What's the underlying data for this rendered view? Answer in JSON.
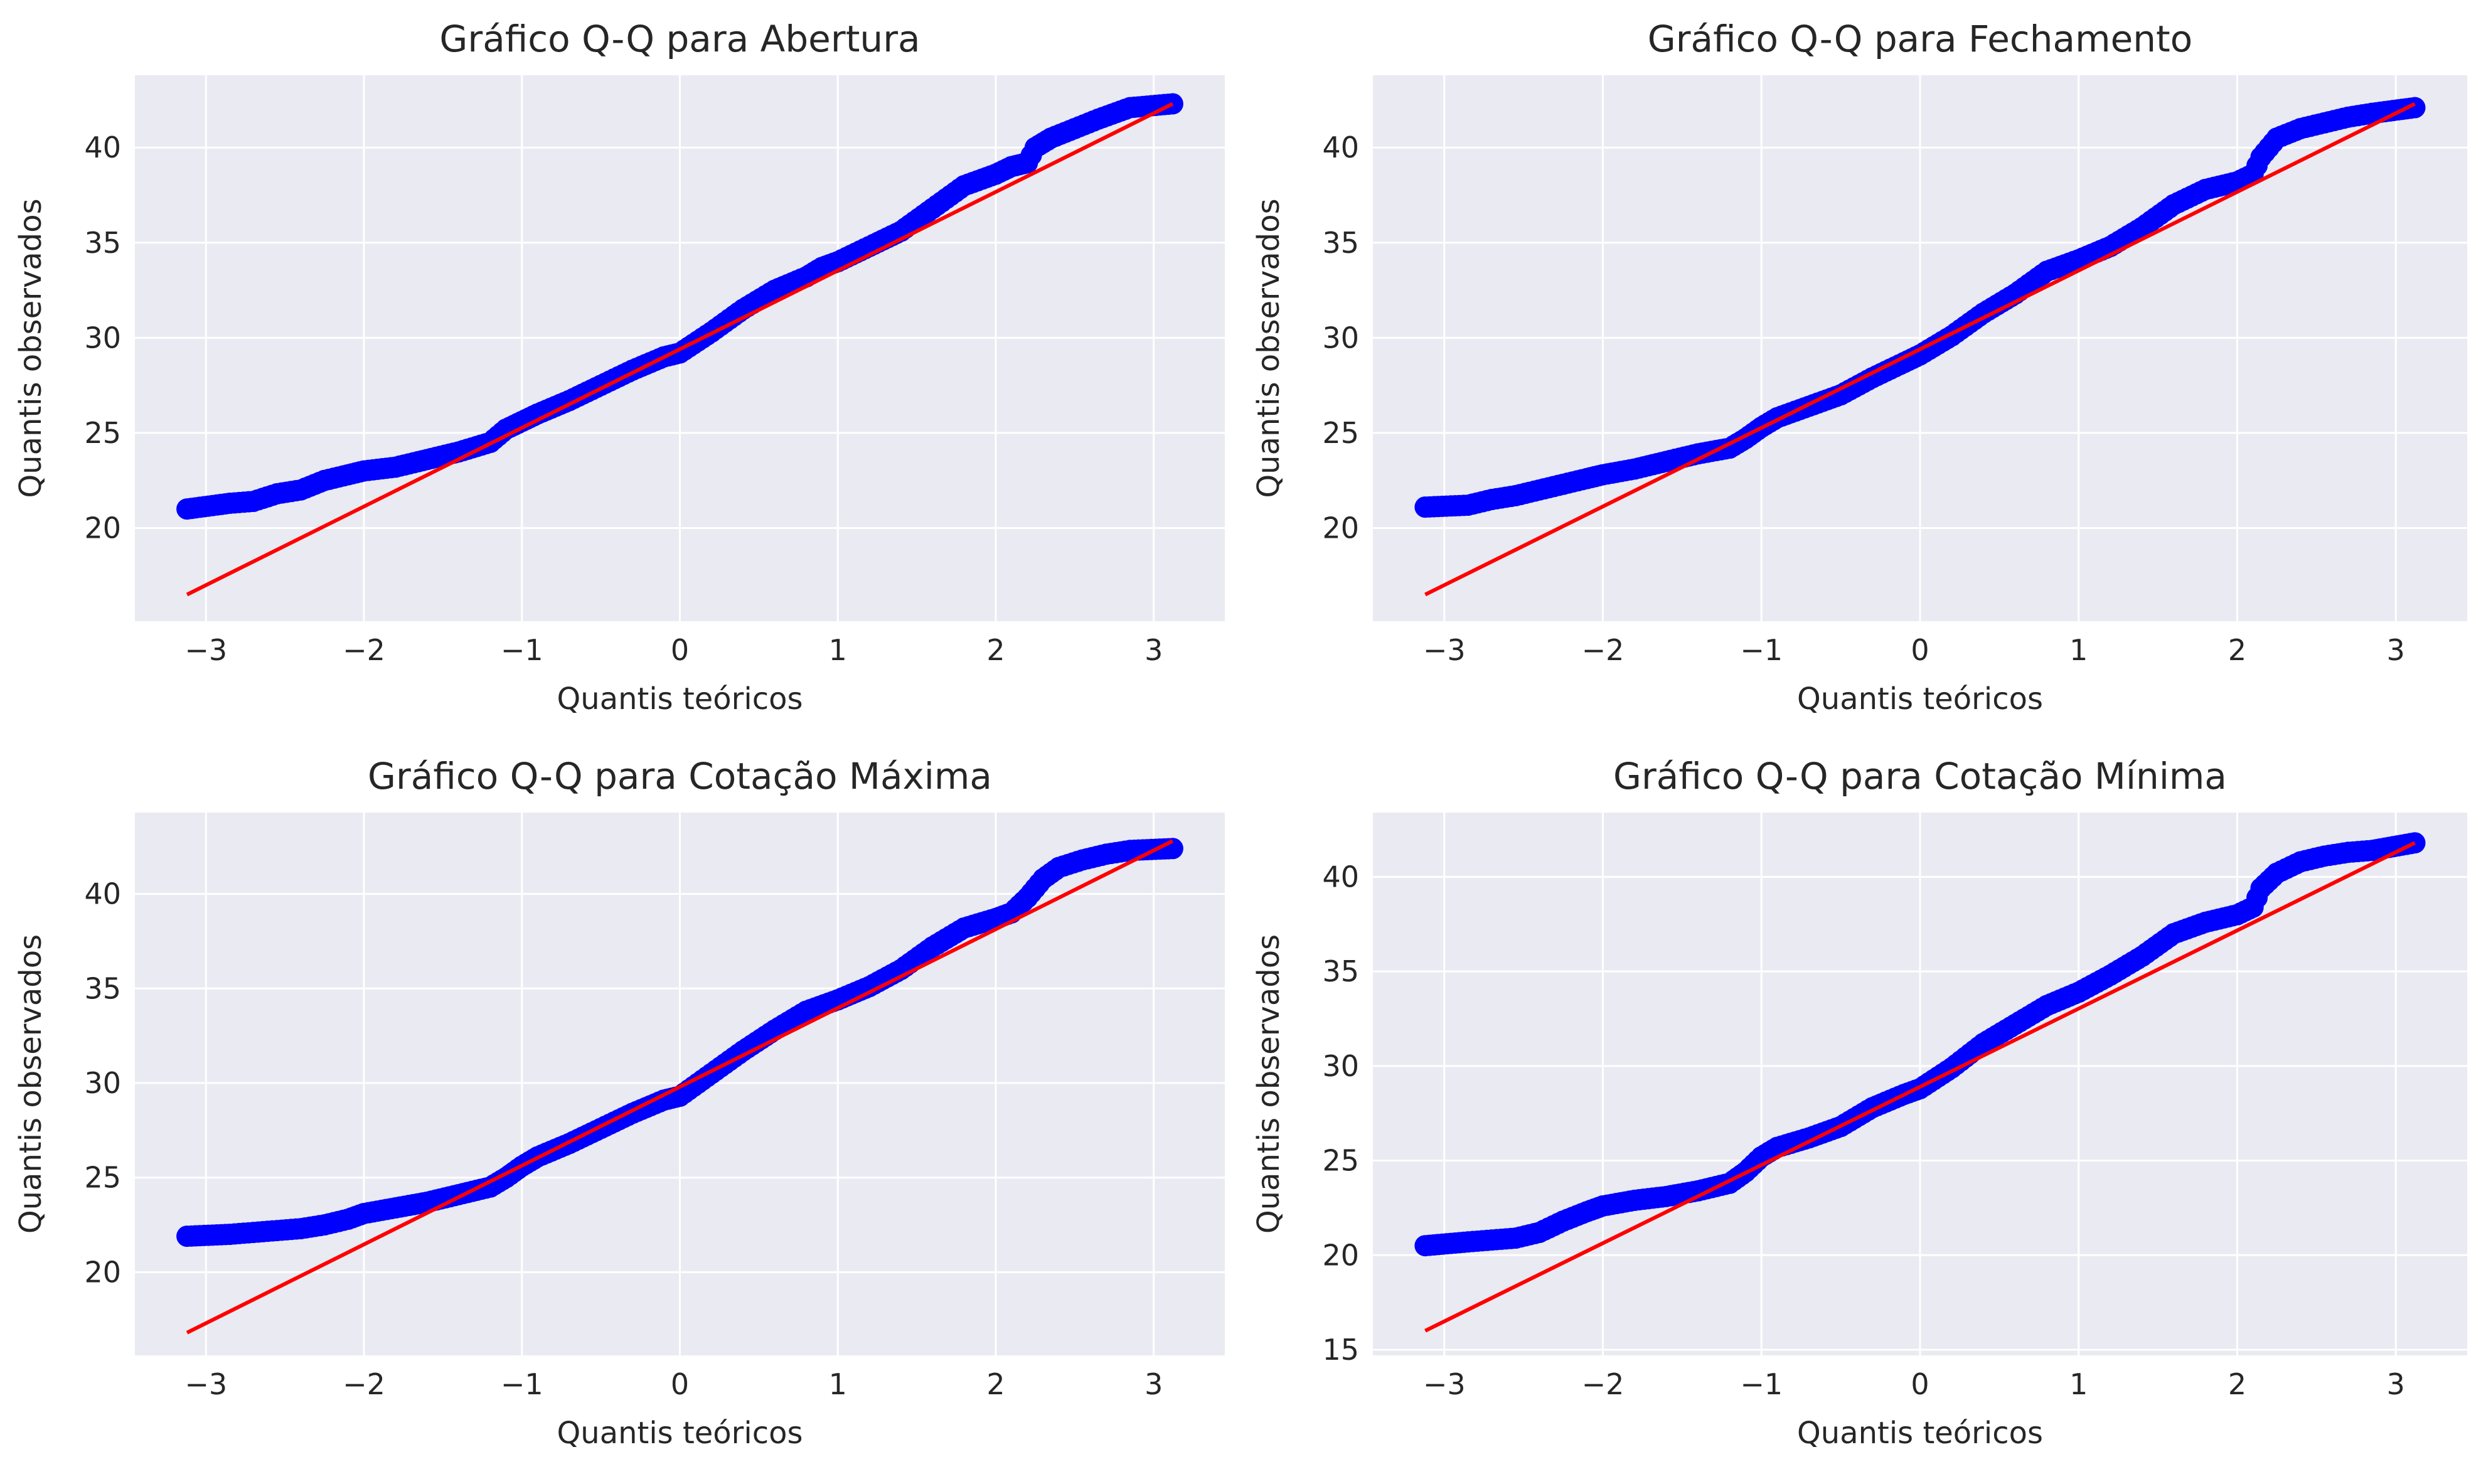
{
  "style": {
    "axes_facecolor": "#eaeaf2",
    "grid_color": "#ffffff",
    "point_color": "#0000ff",
    "line_color": "#ff0000",
    "text_color": "#262626"
  },
  "chart_data": [
    {
      "type": "scatter",
      "title": "Gráfico Q-Q para Abertura",
      "xlabel": "Quantis teóricos",
      "ylabel": "Quantis observados",
      "xlim": [
        -3.45,
        3.45
      ],
      "ylim": [
        15.1,
        43.8
      ],
      "xticks": [
        -3,
        -2,
        -1,
        0,
        1,
        2,
        3
      ],
      "yticks": [
        20,
        25,
        30,
        35,
        40
      ],
      "grid": true,
      "fit_line": {
        "x": [
          -3.12,
          3.12
        ],
        "y": [
          16.5,
          42.3
        ]
      },
      "series": [
        {
          "x": [
            -3.12,
            -2.85,
            -2.7,
            -2.55,
            -2.4,
            -2.25,
            -2.1,
            -2.0,
            -1.8,
            -1.6,
            -1.4,
            -1.2,
            -1.1,
            -1.0,
            -0.9,
            -0.7,
            -0.5,
            -0.3,
            -0.1,
            0.0,
            0.2,
            0.4,
            0.6,
            0.8,
            0.9,
            1.0,
            1.2,
            1.4,
            1.6,
            1.8,
            2.0,
            2.1,
            2.2,
            2.25,
            2.35,
            2.5,
            2.65,
            2.85,
            3.12
          ],
          "y": [
            21.0,
            21.3,
            21.4,
            21.8,
            22.0,
            22.5,
            22.8,
            23.0,
            23.2,
            23.6,
            24.0,
            24.5,
            25.2,
            25.6,
            26.0,
            26.7,
            27.5,
            28.3,
            29.0,
            29.2,
            30.3,
            31.5,
            32.5,
            33.2,
            33.7,
            34.0,
            34.8,
            35.6,
            36.8,
            38.0,
            38.6,
            39.0,
            39.2,
            40.0,
            40.5,
            41.0,
            41.5,
            42.1,
            42.3
          ]
        }
      ]
    },
    {
      "type": "scatter",
      "title": "Gráfico Q-Q para Fechamento",
      "xlabel": "Quantis teóricos",
      "ylabel": "Quantis observados",
      "xlim": [
        -3.45,
        3.45
      ],
      "ylim": [
        15.1,
        43.8
      ],
      "xticks": [
        -3,
        -2,
        -1,
        0,
        1,
        2,
        3
      ],
      "yticks": [
        20,
        25,
        30,
        35,
        40
      ],
      "grid": true,
      "fit_line": {
        "x": [
          -3.12,
          3.12
        ],
        "y": [
          16.5,
          42.3
        ]
      },
      "series": [
        {
          "x": [
            -3.12,
            -2.85,
            -2.7,
            -2.55,
            -2.4,
            -2.25,
            -2.1,
            -2.0,
            -1.8,
            -1.6,
            -1.4,
            -1.2,
            -1.1,
            -1.0,
            -0.9,
            -0.7,
            -0.5,
            -0.3,
            -0.1,
            0.0,
            0.2,
            0.4,
            0.6,
            0.8,
            1.0,
            1.2,
            1.4,
            1.6,
            1.8,
            2.0,
            2.1,
            2.15,
            2.25,
            2.4,
            2.55,
            2.7,
            2.85,
            3.12
          ],
          "y": [
            21.1,
            21.2,
            21.5,
            21.7,
            22.0,
            22.3,
            22.6,
            22.8,
            23.1,
            23.5,
            23.9,
            24.2,
            24.7,
            25.3,
            25.8,
            26.4,
            27.0,
            27.9,
            28.7,
            29.1,
            30.1,
            31.3,
            32.3,
            33.5,
            34.1,
            34.8,
            35.8,
            37.0,
            37.8,
            38.2,
            38.6,
            39.5,
            40.5,
            41.0,
            41.3,
            41.6,
            41.8,
            42.1
          ]
        }
      ]
    },
    {
      "type": "scatter",
      "title": "Gráfico Q-Q para Cotação Máxima",
      "xlabel": "Quantis teóricos",
      "ylabel": "Quantis observados",
      "xlim": [
        -3.45,
        3.45
      ],
      "ylim": [
        15.6,
        44.3
      ],
      "xticks": [
        -3,
        -2,
        -1,
        0,
        1,
        2,
        3
      ],
      "yticks": [
        20,
        25,
        30,
        35,
        40
      ],
      "grid": true,
      "fit_line": {
        "x": [
          -3.12,
          3.12
        ],
        "y": [
          16.8,
          42.8
        ]
      },
      "series": [
        {
          "x": [
            -3.12,
            -2.85,
            -2.7,
            -2.55,
            -2.4,
            -2.25,
            -2.1,
            -2.0,
            -1.8,
            -1.6,
            -1.4,
            -1.2,
            -1.1,
            -1.0,
            -0.9,
            -0.7,
            -0.5,
            -0.3,
            -0.1,
            0.0,
            0.2,
            0.4,
            0.6,
            0.8,
            1.0,
            1.2,
            1.4,
            1.6,
            1.8,
            2.0,
            2.1,
            2.2,
            2.3,
            2.4,
            2.55,
            2.7,
            2.85,
            3.12
          ],
          "y": [
            21.9,
            22.0,
            22.1,
            22.2,
            22.3,
            22.5,
            22.8,
            23.1,
            23.4,
            23.7,
            24.1,
            24.5,
            25.0,
            25.6,
            26.1,
            26.8,
            27.6,
            28.4,
            29.1,
            29.3,
            30.5,
            31.7,
            32.8,
            33.8,
            34.4,
            35.1,
            36.0,
            37.2,
            38.2,
            38.7,
            39.0,
            39.8,
            40.8,
            41.4,
            41.8,
            42.1,
            42.3,
            42.4
          ]
        }
      ]
    },
    {
      "type": "scatter",
      "title": "Gráfico Q-Q para Cotação Mínima",
      "xlabel": "Quantis teóricos",
      "ylabel": "Quantis observados",
      "xlim": [
        -3.45,
        3.45
      ],
      "ylim": [
        14.7,
        43.4
      ],
      "xticks": [
        -3,
        -2,
        -1,
        0,
        1,
        2,
        3
      ],
      "yticks": [
        15,
        20,
        25,
        30,
        35,
        40
      ],
      "grid": true,
      "fit_line": {
        "x": [
          -3.12,
          3.12
        ],
        "y": [
          16.0,
          41.8
        ]
      },
      "series": [
        {
          "x": [
            -3.12,
            -2.85,
            -2.7,
            -2.55,
            -2.4,
            -2.25,
            -2.1,
            -2.0,
            -1.8,
            -1.6,
            -1.4,
            -1.2,
            -1.1,
            -1.0,
            -0.9,
            -0.7,
            -0.5,
            -0.3,
            -0.1,
            0.0,
            0.2,
            0.4,
            0.6,
            0.8,
            1.0,
            1.2,
            1.4,
            1.6,
            1.8,
            2.0,
            2.1,
            2.15,
            2.25,
            2.4,
            2.55,
            2.7,
            2.85,
            3.12
          ],
          "y": [
            20.5,
            20.7,
            20.8,
            20.9,
            21.2,
            21.8,
            22.3,
            22.6,
            22.9,
            23.1,
            23.4,
            23.8,
            24.4,
            25.2,
            25.7,
            26.2,
            26.8,
            27.8,
            28.5,
            28.8,
            29.9,
            31.2,
            32.2,
            33.2,
            33.9,
            34.8,
            35.8,
            37.0,
            37.6,
            38.0,
            38.4,
            39.4,
            40.2,
            40.8,
            41.1,
            41.3,
            41.4,
            41.8
          ]
        }
      ]
    }
  ]
}
